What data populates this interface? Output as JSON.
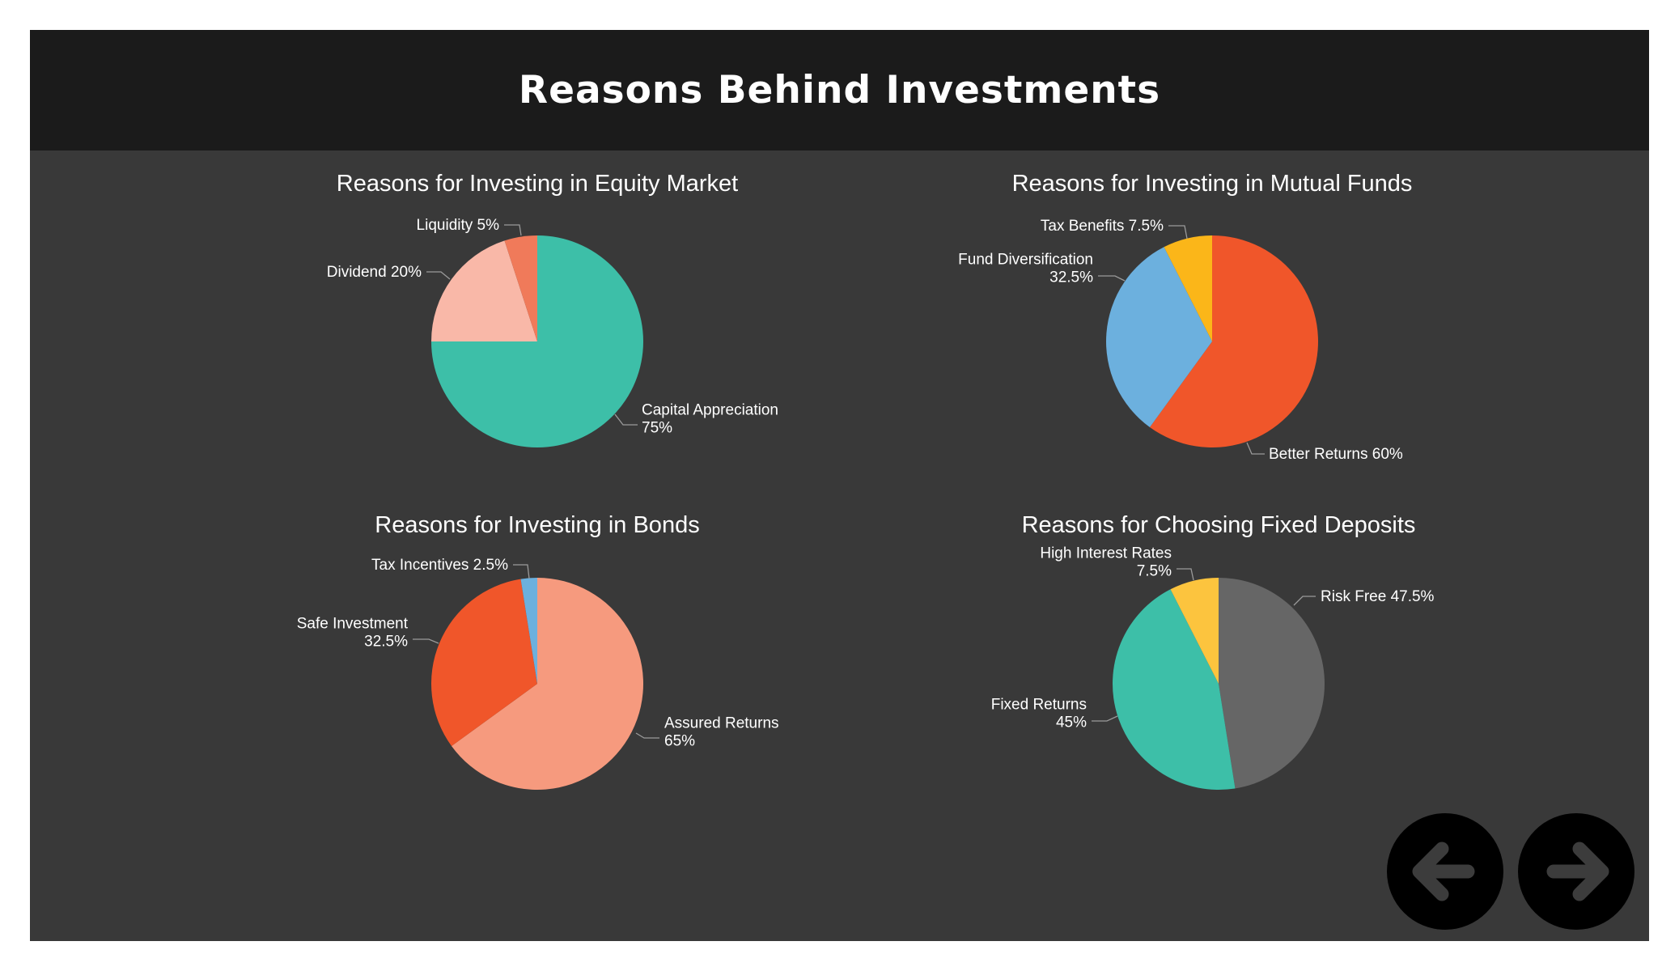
{
  "page": {
    "title": "Reasons Behind Investments"
  },
  "navigation": {
    "prev_icon": "arrow-left-icon",
    "next_icon": "arrow-right-icon",
    "icon_color": "#3c3c3c"
  },
  "chart_data": [
    {
      "type": "pie",
      "title": "Reasons for Investing in Equity Market",
      "slices": [
        {
          "label": "Capital Appreciation",
          "value": 75,
          "value_label": "75%",
          "color": "#3dbfa8"
        },
        {
          "label": "Dividend",
          "value": 20,
          "value_label": "20%",
          "color": "#f9b8a8"
        },
        {
          "label": "Liquidity",
          "value": 5,
          "value_label": "5%",
          "color": "#f07a5a"
        }
      ]
    },
    {
      "type": "pie",
      "title": "Reasons for Investing in Mutual Funds",
      "slices": [
        {
          "label": "Better Returns",
          "value": 60,
          "value_label": "60%",
          "color": "#f0562a"
        },
        {
          "label": "Fund Diversification",
          "value": 32.5,
          "value_label": "32.5%",
          "color": "#6cb0de"
        },
        {
          "label": "Tax Benefits",
          "value": 7.5,
          "value_label": "7.5%",
          "color": "#fbb619"
        }
      ]
    },
    {
      "type": "pie",
      "title": "Reasons for Investing in Bonds",
      "slices": [
        {
          "label": "Assured Returns",
          "value": 65,
          "value_label": "65%",
          "color": "#f69a7e"
        },
        {
          "label": "Safe Investment",
          "value": 32.5,
          "value_label": "32.5%",
          "color": "#f0562a"
        },
        {
          "label": "Tax Incentives",
          "value": 2.5,
          "value_label": "2.5%",
          "color": "#6cb0de"
        }
      ]
    },
    {
      "type": "pie",
      "title": "Reasons for Choosing Fixed Deposits",
      "slices": [
        {
          "label": "Risk Free",
          "value": 47.5,
          "value_label": "47.5%",
          "color": "#666666"
        },
        {
          "label": "Fixed Returns",
          "value": 45,
          "value_label": "45%",
          "color": "#3dbfa8"
        },
        {
          "label": "High Interest Rates",
          "value": 7.5,
          "value_label": "7.5%",
          "color": "#fcc43e"
        }
      ]
    }
  ]
}
